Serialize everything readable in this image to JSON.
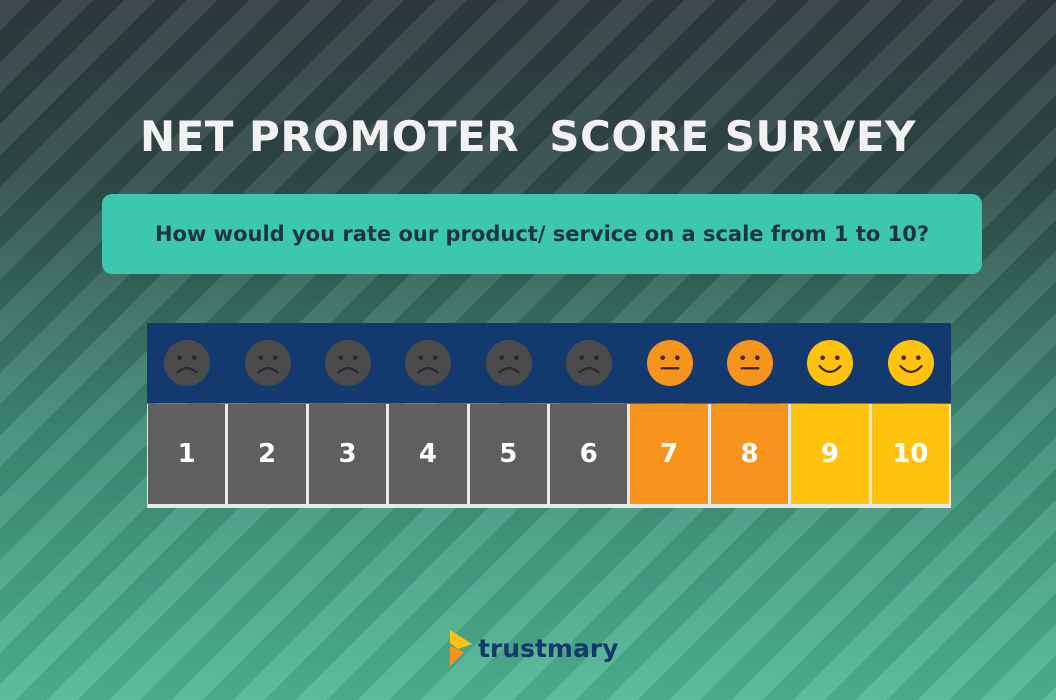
{
  "title": "NET PROMOTER  SCORE SURVEY",
  "question": "How would you rate our product/ service on a scale from 1 to 10?",
  "scale": [
    {
      "label": "1",
      "mood": "sad",
      "color": "#5f5f5f",
      "face_color": "#4b4b4b"
    },
    {
      "label": "2",
      "mood": "sad",
      "color": "#5f5f5f",
      "face_color": "#4b4b4b"
    },
    {
      "label": "3",
      "mood": "sad",
      "color": "#5f5f5f",
      "face_color": "#4b4b4b"
    },
    {
      "label": "4",
      "mood": "sad",
      "color": "#5f5f5f",
      "face_color": "#4b4b4b"
    },
    {
      "label": "5",
      "mood": "sad",
      "color": "#5f5f5f",
      "face_color": "#4b4b4b"
    },
    {
      "label": "6",
      "mood": "sad",
      "color": "#5f5f5f",
      "face_color": "#4b4b4b"
    },
    {
      "label": "7",
      "mood": "neutral",
      "color": "#f7941d",
      "face_color": "#f7941d"
    },
    {
      "label": "8",
      "mood": "neutral",
      "color": "#f7941d",
      "face_color": "#f7941d"
    },
    {
      "label": "9",
      "mood": "happy",
      "color": "#ffc20e",
      "face_color": "#ffc20e"
    },
    {
      "label": "10",
      "mood": "happy",
      "color": "#ffc20e",
      "face_color": "#ffc20e"
    }
  ],
  "logo": {
    "text": "trustmary",
    "icon": "trustmary-logo-icon"
  }
}
